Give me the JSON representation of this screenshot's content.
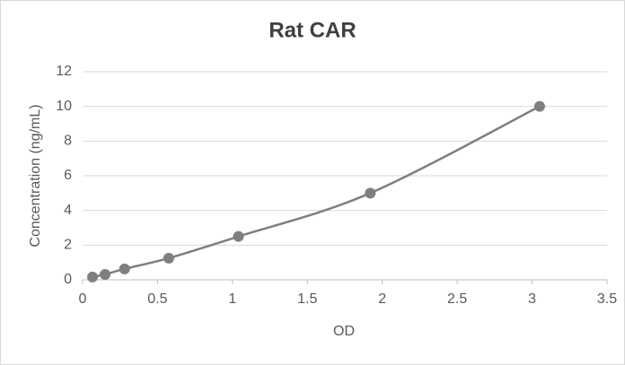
{
  "chart_data": {
    "type": "scatter",
    "title": "Rat CAR",
    "x_label": "OD",
    "y_label": "Concentration (ng/mL)",
    "series": [
      {
        "name": "Rat CAR",
        "color": "#7f7f7f",
        "x": [
          0.066,
          0.15,
          0.28,
          0.575,
          1.04,
          1.92,
          3.05
        ],
        "values": [
          0.16,
          0.31,
          0.63,
          1.25,
          2.5,
          5,
          10
        ]
      }
    ],
    "smooth_line": true,
    "xlim": [
      0,
      3.5
    ],
    "xticks": [
      0,
      0.5,
      1,
      1.5,
      2,
      2.5,
      3,
      3.5
    ],
    "ylim": [
      0,
      12
    ],
    "yticks": [
      0,
      2,
      4,
      6,
      8,
      10,
      12
    ],
    "grid": true
  }
}
